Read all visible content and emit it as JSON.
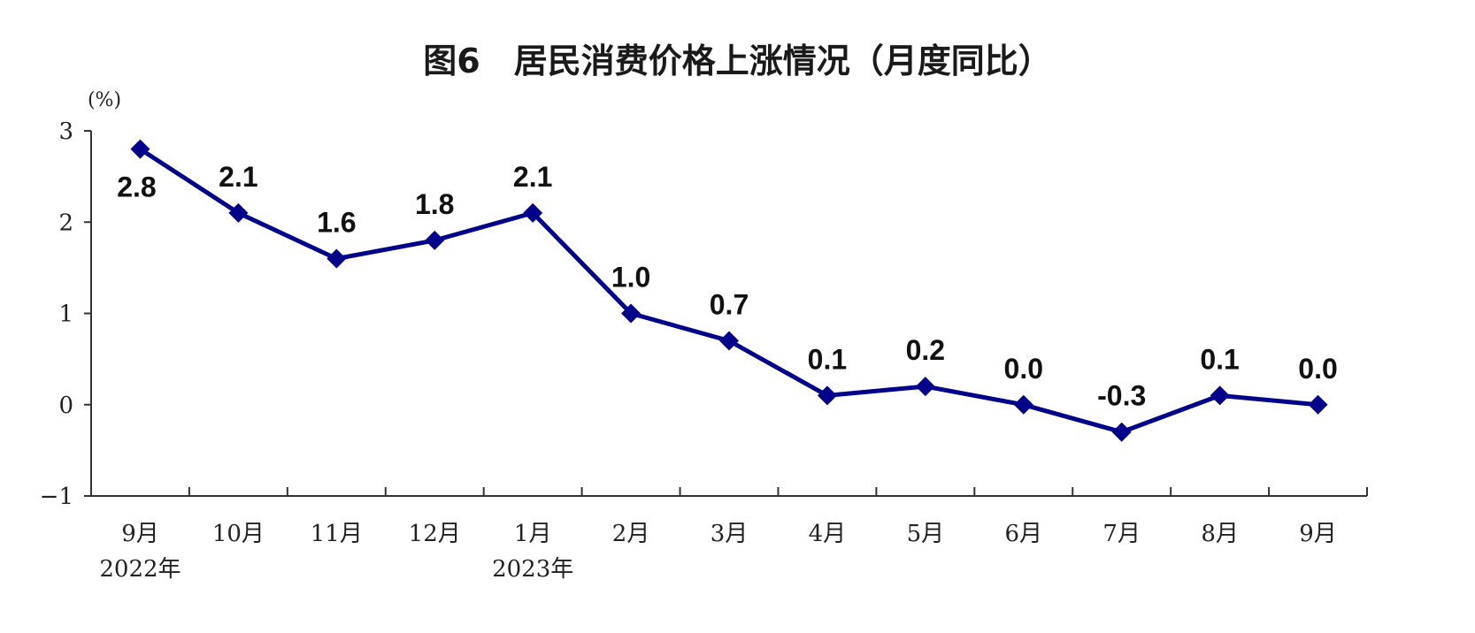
{
  "chart_data": {
    "type": "line",
    "title": "图6　居民消费价格上涨情况（月度同比）",
    "unit_label": "(%)",
    "categories": [
      "9月",
      "10月",
      "11月",
      "12月",
      "1月",
      "2月",
      "3月",
      "4月",
      "5月",
      "6月",
      "7月",
      "8月",
      "9月"
    ],
    "year_labels": [
      {
        "index": 0,
        "label": "2022年"
      },
      {
        "index": 4,
        "label": "2023年"
      }
    ],
    "values": [
      2.8,
      2.1,
      1.6,
      1.8,
      2.1,
      1.0,
      0.7,
      0.1,
      0.2,
      0.0,
      -0.3,
      0.1,
      0.0
    ],
    "value_labels": [
      "2.8",
      "2.1",
      "1.6",
      "1.8",
      "2.1",
      "1.0",
      "0.7",
      "0.1",
      "0.2",
      "0.0",
      "-0.3",
      "0.1",
      "0.0"
    ],
    "yticks": [
      3,
      2,
      1,
      0,
      -1
    ],
    "ytick_labels": [
      "3",
      "2",
      "1",
      "0",
      "−1"
    ],
    "ylim": [
      -1,
      3
    ],
    "grid": false,
    "colors": {
      "line": "#00008B",
      "axis": "#333333"
    }
  }
}
